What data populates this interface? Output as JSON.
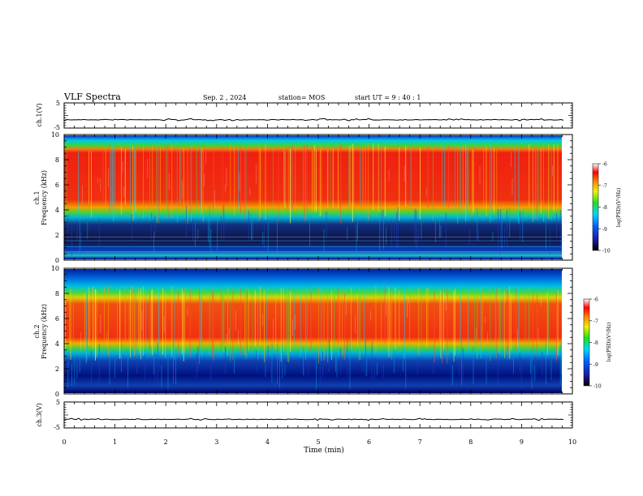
{
  "header": {
    "title": "VLF Spectra",
    "date": "Sep. 2  , 2024",
    "station": "station= MOS",
    "start": "start  UT =   9 : 40 : 1"
  },
  "chart_data": [
    {
      "type": "line",
      "name": "ch1-waveform",
      "ylabel": "ch.1(V)",
      "ylim": [
        -5,
        5
      ],
      "yticks": [
        "5",
        "-5"
      ],
      "baseline": -1.7
    },
    {
      "type": "heatmap",
      "name": "ch1-spectrogram",
      "ylabel_top": "ch.1",
      "ylabel": "Frequency (kHz)",
      "ylim": [
        0,
        10
      ],
      "yticks": [
        "0",
        "2",
        "4",
        "6",
        "8",
        "10"
      ],
      "band_khz": [
        4.5,
        8.7
      ],
      "colorbar": {
        "label": "log(PSD)(V²/Hz)",
        "range": [
          -10,
          -6
        ],
        "ticks": [
          "-6",
          "-7",
          "-8",
          "-9",
          "-10"
        ]
      }
    },
    {
      "type": "heatmap",
      "name": "ch2-spectrogram",
      "ylabel_top": "ch.2",
      "ylabel": "Frequency (kHz)",
      "ylim": [
        0,
        10
      ],
      "yticks": [
        "0",
        "2",
        "4",
        "6",
        "8",
        "10"
      ],
      "band_khz": [
        4.0,
        8.0
      ],
      "colorbar": {
        "label": "log(PSD)(V²/Hz)",
        "range": [
          -10,
          -6
        ],
        "ticks": [
          "-6",
          "-7",
          "-8",
          "-9",
          "-10"
        ]
      }
    },
    {
      "type": "line",
      "name": "ch3-waveform",
      "ylabel": "ch.3(V)",
      "ylim": [
        -5,
        5
      ],
      "yticks": [
        "5",
        "-5"
      ],
      "baseline": -1.7
    }
  ],
  "xaxis": {
    "label": "Time  (min)",
    "range": [
      0,
      10
    ],
    "data_end": 9.83,
    "ticks": [
      "0",
      "1",
      "2",
      "3",
      "4",
      "5",
      "6",
      "7",
      "8",
      "9",
      "10"
    ]
  },
  "colors": {
    "low": "#000040",
    "mid": "#00c8ff",
    "high": "#ff2000"
  }
}
